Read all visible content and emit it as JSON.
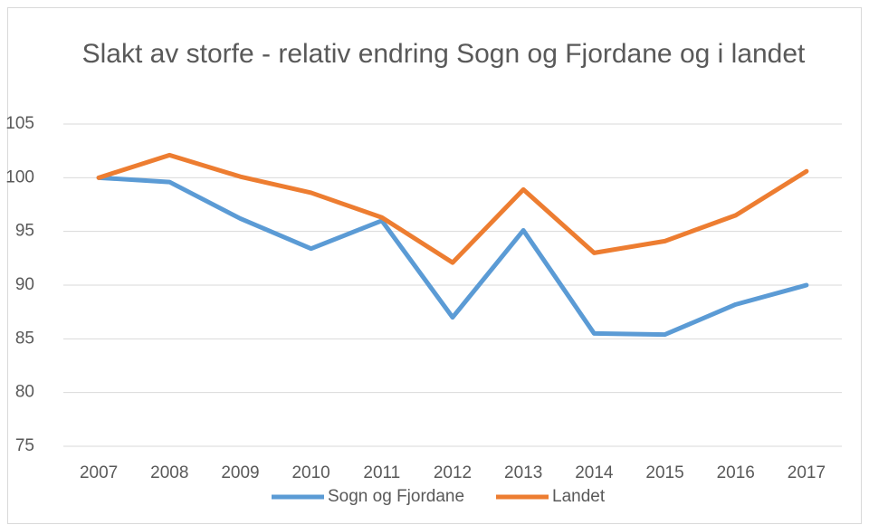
{
  "chart_data": {
    "type": "line",
    "title": "Slakt av storfe - relativ endring Sogn og Fjordane og i landet",
    "categories": [
      "2007",
      "2008",
      "2009",
      "2010",
      "2011",
      "2012",
      "2013",
      "2014",
      "2015",
      "2016",
      "2017"
    ],
    "series": [
      {
        "name": "Sogn og Fjordane",
        "color": "#5b9bd5",
        "values": [
          100,
          99.6,
          96.2,
          93.4,
          96.0,
          87.0,
          95.1,
          85.5,
          85.4,
          88.2,
          90.0
        ]
      },
      {
        "name": "Landet",
        "color": "#ed7d31",
        "values": [
          100,
          102.1,
          100.1,
          98.6,
          96.3,
          92.1,
          98.9,
          93.0,
          94.1,
          96.5,
          100.6
        ]
      }
    ],
    "ylim": [
      75,
      105
    ],
    "yticks": [
      75,
      80,
      85,
      90,
      95,
      100,
      105
    ],
    "grid": true,
    "legend": "bottom"
  }
}
